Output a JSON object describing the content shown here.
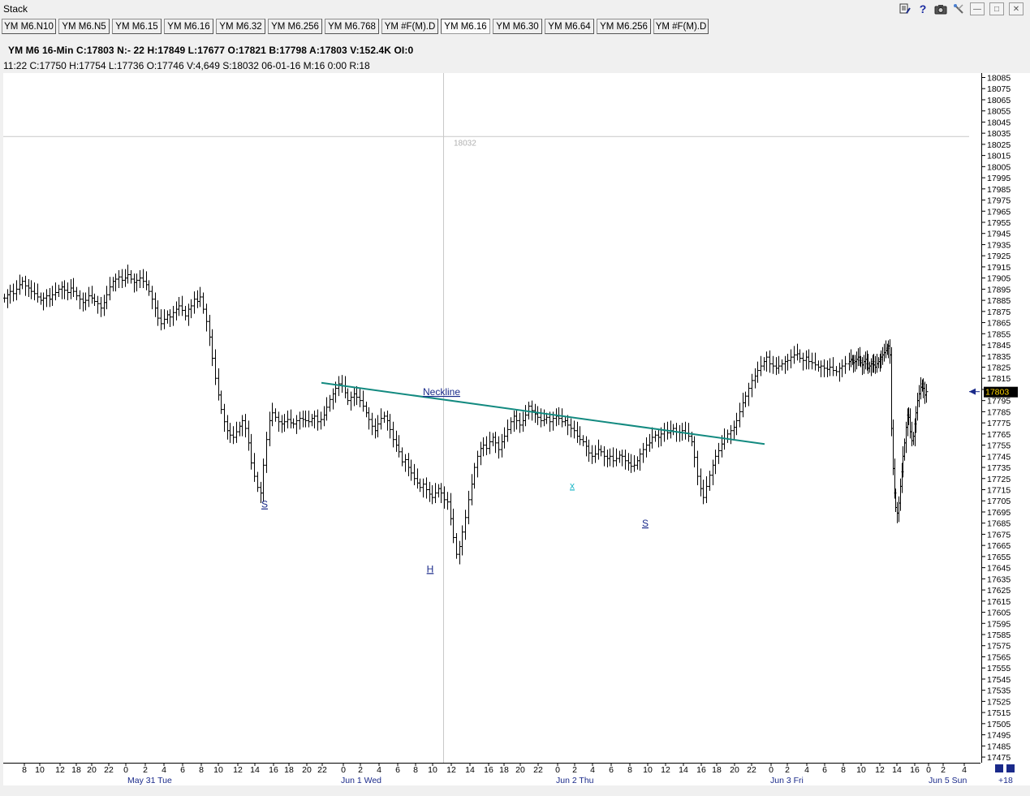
{
  "window": {
    "title": "Stack"
  },
  "title_icons": [
    "edit-icon",
    "help-icon",
    "camera-icon",
    "tools-icon",
    "minimize-icon",
    "maximize-icon",
    "close-icon"
  ],
  "tabs": [
    {
      "label": "YM M6.N10",
      "active": false
    },
    {
      "label": "YM M6.N5",
      "active": false
    },
    {
      "label": "YM M6.15",
      "active": false
    },
    {
      "label": "YM M6.16",
      "active": false
    },
    {
      "label": "YM M6.32",
      "active": false
    },
    {
      "label": "YM M6.256",
      "active": false
    },
    {
      "label": "YM M6.768",
      "active": false
    },
    {
      "label": "YM #F(M).D",
      "active": false
    },
    {
      "label": "YM M6.16",
      "active": true
    },
    {
      "label": "YM M6.30",
      "active": false
    },
    {
      "label": "YM M6.64",
      "active": false
    },
    {
      "label": "YM M6.256",
      "active": false
    },
    {
      "label": "YM #F(M).D",
      "active": false
    }
  ],
  "quote": {
    "line1": "YM  M6  16-Min  C:17803  N:- 22  H:17849  L:17677  O:17821  B:17798  A:17803  V:152.4K  OI:0",
    "line2": "11:22  C:17750  H:17754  L:17736  O:17746  V:4,649  S:18032  06-01-16  M:16  0:00  R:18"
  },
  "chart_data": {
    "type": "bar",
    "symbol": "YM M6",
    "interval": "16-Min",
    "ylim": [
      17470,
      18090
    ],
    "y_ticks": [
      18085,
      18075,
      18065,
      18055,
      18045,
      18035,
      18025,
      18015,
      18005,
      17995,
      17985,
      17975,
      17965,
      17955,
      17945,
      17935,
      17925,
      17915,
      17905,
      17895,
      17885,
      17875,
      17865,
      17855,
      17845,
      17835,
      17825,
      17815,
      17805,
      17795,
      17785,
      17775,
      17765,
      17755,
      17745,
      17735,
      17725,
      17715,
      17705,
      17695,
      17685,
      17675,
      17665,
      17655,
      17645,
      17635,
      17625,
      17615,
      17605,
      17595,
      17585,
      17575,
      17565,
      17555,
      17545,
      17535,
      17525,
      17515,
      17505,
      17495,
      17485,
      17475
    ],
    "last_price": "17803",
    "crosshair_price": "18032",
    "x_tick_labels": [
      "8",
      "10",
      "12",
      "18",
      "20",
      "22",
      "0",
      "2",
      "4",
      "6",
      "8",
      "10",
      "12",
      "14",
      "16",
      "18",
      "20",
      "22",
      "0",
      "2",
      "4",
      "6",
      "8",
      "10",
      "12",
      "14",
      "16",
      "18",
      "20",
      "22",
      "0",
      "2",
      "4",
      "6",
      "8",
      "10",
      "12",
      "14",
      "16",
      "18",
      "20",
      "22",
      "0",
      "2",
      "4",
      "6",
      "8",
      "10",
      "12",
      "14",
      "16",
      "0",
      "2",
      "4"
    ],
    "x_date_labels": [
      "May 31 Tue",
      "Jun 1 Wed",
      "Jun 2 Thu",
      "Jun 3 Fri",
      "Jun 5 Sun"
    ],
    "corner_label": "+18",
    "annotations": [
      {
        "text": "Neckline",
        "type": "label"
      },
      {
        "text": "S",
        "type": "label"
      },
      {
        "text": "H",
        "type": "label"
      },
      {
        "text": "x",
        "type": "label"
      },
      {
        "text": "S",
        "type": "label"
      }
    ],
    "neckline": {
      "start": 17811,
      "end": 17756
    },
    "closes": [
      17887,
      17890,
      17893,
      17891,
      17895,
      17899,
      17902,
      17898,
      17896,
      17893,
      17891,
      17888,
      17885,
      17887,
      17889,
      17886,
      17890,
      17892,
      17895,
      17897,
      17894,
      17892,
      17896,
      17893,
      17889,
      17886,
      17883,
      17885,
      17889,
      17887,
      17884,
      17882,
      17878,
      17883,
      17890,
      17897,
      17902,
      17904,
      17906,
      17903,
      17905,
      17908,
      17904,
      17901,
      17903,
      17905,
      17902,
      17899,
      17893,
      17886,
      17878,
      17869,
      17864,
      17868,
      17872,
      17870,
      17874,
      17877,
      17880,
      17876,
      17871,
      17877,
      17880,
      17886,
      17884,
      17888,
      17877,
      17866,
      17852,
      17833,
      17815,
      17800,
      17787,
      17776,
      17768,
      17764,
      17762,
      17767,
      17772,
      17777,
      17770,
      17757,
      17739,
      17727,
      17717,
      17712,
      17737,
      17760,
      17777,
      17784,
      17780,
      17776,
      17774,
      17776,
      17778,
      17775,
      17774,
      17777,
      17779,
      17778,
      17777,
      17776,
      17779,
      17781,
      17776,
      17778,
      17782,
      17789,
      17796,
      17801,
      17806,
      17810,
      17808,
      17802,
      17795,
      17798,
      17801,
      17798,
      17795,
      17790,
      17784,
      17778,
      17772,
      17768,
      17774,
      17779,
      17781,
      17777,
      17769,
      17760,
      17755,
      17749,
      17740,
      17742,
      17735,
      17730,
      17725,
      17721,
      17717,
      17720,
      17715,
      17711,
      17708,
      17712,
      17716,
      17712,
      17706,
      17704,
      17689,
      17672,
      17657,
      17664,
      17677,
      17690,
      17706,
      17720,
      17735,
      17745,
      17752,
      17755,
      17752,
      17758,
      17762,
      17757,
      17751,
      17758,
      17763,
      17769,
      17776,
      17781,
      17777,
      17773,
      17777,
      17782,
      17790,
      17786,
      17783,
      17780,
      17777,
      17778,
      17780,
      17776,
      17779,
      17781,
      17779,
      17776,
      17777,
      17773,
      17770,
      17768,
      17763,
      17760,
      17758,
      17754,
      17748,
      17745,
      17747,
      17751,
      17749,
      17745,
      17743,
      17745,
      17741,
      17743,
      17746,
      17745,
      17741,
      17739,
      17736,
      17737,
      17741,
      17747,
      17751,
      17755,
      17757,
      17762,
      17764,
      17762,
      17765,
      17768,
      17766,
      17768,
      17770,
      17767,
      17766,
      17768,
      17766,
      17763,
      17758,
      17744,
      17727,
      17716,
      17708,
      17718,
      17728,
      17737,
      17745,
      17750,
      17756,
      17761,
      17765,
      17768,
      17771,
      17777,
      17785,
      17793,
      17799,
      17806,
      17813,
      17817,
      17822,
      17826,
      17830,
      17834,
      17828,
      17826,
      17824,
      17826,
      17828,
      17830,
      17831,
      17834,
      17836,
      17837,
      17833,
      17831,
      17834,
      17830,
      17829,
      17827,
      17825,
      17826,
      17824,
      17823,
      17825,
      17822,
      17821,
      17824,
      17826,
      17828,
      17830,
      17832,
      17831,
      17829,
      17830,
      17832,
      17834,
      17831,
      17829,
      17827,
      17830,
      17832,
      17828,
      17824,
      17826,
      17828,
      17830,
      17827,
      17825,
      17828,
      17830,
      17832,
      17834,
      17836,
      17838,
      17840,
      17842,
      17844,
      17836,
      17770,
      17734,
      17712,
      17699,
      17694,
      17703,
      17718,
      17731,
      17745,
      17757,
      17771,
      17782,
      17780,
      17767,
      17759,
      17763,
      17774,
      17784,
      17795,
      17801,
      17807,
      17810,
      17806,
      17800,
      17803
    ]
  }
}
